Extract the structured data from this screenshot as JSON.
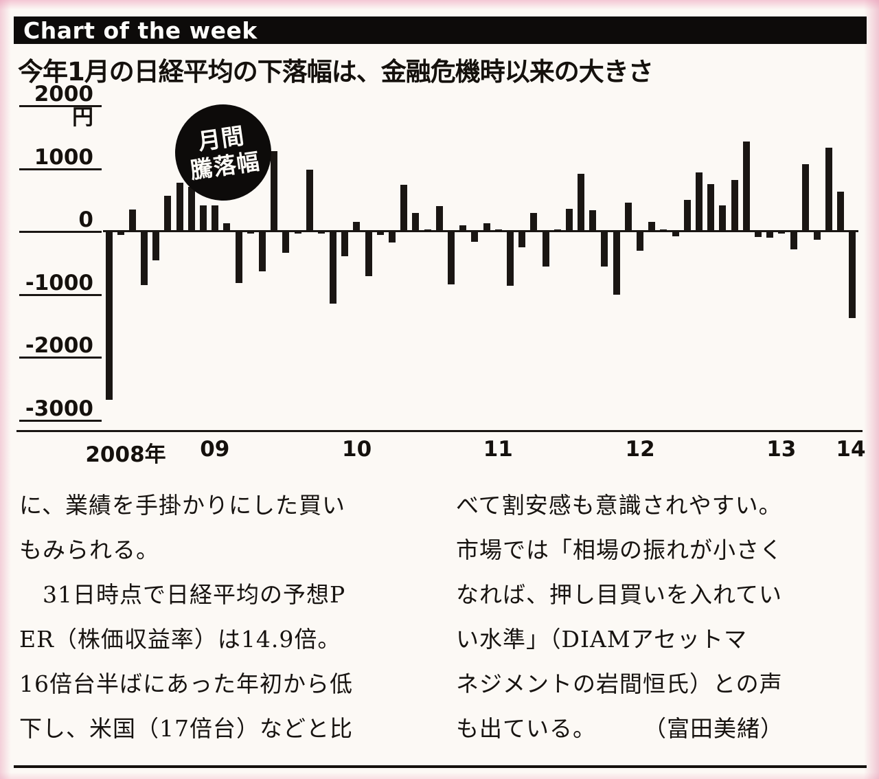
{
  "banner": {
    "title": "Chart of the week"
  },
  "headline": "今年1月の日経平均の下落幅は、金融危機時以来の大きさ",
  "chart_data": {
    "type": "bar",
    "title": "今年1月の日経平均の下落幅は、金融危機時以来の大きさ",
    "badge_lines": [
      "月間",
      "騰落幅"
    ],
    "unit": "円",
    "ylabel": "",
    "xlabel": "",
    "ylim": [
      -3000,
      2000
    ],
    "grid": "off",
    "legend": "none",
    "bar_color": "#1a1613",
    "y_ticks": [
      "2000円",
      "1000",
      "0",
      "-1000",
      "-2000",
      "-3000"
    ],
    "y_tick_values": [
      2000,
      1000,
      0,
      -1000,
      -2000,
      -3000
    ],
    "x_ticks": [
      {
        "label": "2008年",
        "pos": 0.03
      },
      {
        "label": "09",
        "pos": 0.148
      },
      {
        "label": "10",
        "pos": 0.336
      },
      {
        "label": "11",
        "pos": 0.523
      },
      {
        "label": "12",
        "pos": 0.711
      },
      {
        "label": "13",
        "pos": 0.898
      },
      {
        "label": "14",
        "pos": 0.99
      }
    ],
    "x_months": [
      "2008/10",
      "2008/11",
      "2008/12",
      "2009/01",
      "2009/02",
      "2009/03",
      "2009/04",
      "2009/05",
      "2009/06",
      "2009/07",
      "2009/08",
      "2009/09",
      "2009/10",
      "2009/11",
      "2009/12",
      "2010/01",
      "2010/02",
      "2010/03",
      "2010/04",
      "2010/05",
      "2010/06",
      "2010/07",
      "2010/08",
      "2010/09",
      "2010/10",
      "2010/11",
      "2010/12",
      "2011/01",
      "2011/02",
      "2011/03",
      "2011/04",
      "2011/05",
      "2011/06",
      "2011/07",
      "2011/08",
      "2011/09",
      "2011/10",
      "2011/11",
      "2011/12",
      "2012/01",
      "2012/02",
      "2012/03",
      "2012/04",
      "2012/05",
      "2012/06",
      "2012/07",
      "2012/08",
      "2012/09",
      "2012/10",
      "2012/11",
      "2012/12",
      "2013/01",
      "2013/02",
      "2013/03",
      "2013/04",
      "2013/05",
      "2013/06",
      "2013/07",
      "2013/08",
      "2013/09",
      "2013/10",
      "2013/11",
      "2013/12",
      "2014/01"
    ],
    "values": [
      -2680,
      -60,
      350,
      -850,
      -460,
      570,
      780,
      710,
      410,
      410,
      130,
      -820,
      -10,
      -630,
      1280,
      -340,
      -10,
      980,
      -30,
      -1150,
      -390,
      150,
      -710,
      -60,
      -170,
      740,
      290,
      10,
      400,
      -840,
      100,
      -160,
      130,
      20,
      -860,
      -250,
      290,
      -560,
      20,
      360,
      920,
      340,
      -560,
      -1010,
      460,
      -310,
      150,
      20,
      -80,
      500,
      940,
      750,
      420,
      820,
      1430,
      -90,
      -100,
      -10,
      -280,
      1070,
      -130,
      1330,
      630,
      -1380
    ]
  },
  "article": {
    "left_column": [
      "に、業績を手掛かりにした買い",
      "もみられる。",
      "　31日時点で日経平均の予想P",
      "ER（株価収益率）は14.9倍。",
      "16倍台半ばにあった年初から低",
      "下し、米国（17倍台）などと比"
    ],
    "right_column": [
      "べて割安感も意識されやすい。",
      "市場では「相場の振れが小さく",
      "なれば、押し目買いを入れてい",
      "い水準」（DIAMアセットマ",
      "ネジメントの岩間恒氏）との声",
      "も出ている。　　　（富田美緒）"
    ]
  }
}
